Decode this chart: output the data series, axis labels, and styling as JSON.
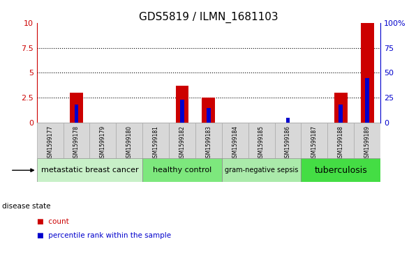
{
  "title": "GDS5819 / ILMN_1681103",
  "samples": [
    "GSM1599177",
    "GSM1599178",
    "GSM1599179",
    "GSM1599180",
    "GSM1599181",
    "GSM1599182",
    "GSM1599183",
    "GSM1599184",
    "GSM1599185",
    "GSM1599186",
    "GSM1599187",
    "GSM1599188",
    "GSM1599189"
  ],
  "count_values": [
    0,
    3.0,
    0,
    0,
    0,
    3.7,
    2.5,
    0,
    0,
    0,
    0,
    3.0,
    10.0
  ],
  "percentile_values": [
    0,
    1.8,
    0,
    0,
    0,
    2.3,
    1.5,
    0,
    0,
    0.5,
    0,
    1.8,
    4.5
  ],
  "groups": [
    {
      "label": "metastatic breast cancer",
      "start": 0,
      "end": 4,
      "color": "#c8f0c8",
      "fontsize": 8
    },
    {
      "label": "healthy control",
      "start": 4,
      "end": 7,
      "color": "#7de87d",
      "fontsize": 8
    },
    {
      "label": "gram-negative sepsis",
      "start": 7,
      "end": 10,
      "color": "#aaeaaa",
      "fontsize": 7
    },
    {
      "label": "tuberculosis",
      "start": 10,
      "end": 13,
      "color": "#44dd44",
      "fontsize": 9
    }
  ],
  "ylim_left": [
    0,
    10
  ],
  "ylim_right": [
    0,
    100
  ],
  "yticks_left": [
    0,
    2.5,
    5.0,
    7.5,
    10
  ],
  "ytick_labels_left": [
    "0",
    "2.5",
    "5",
    "7.5",
    "10"
  ],
  "yticks_right": [
    0,
    25,
    50,
    75,
    100
  ],
  "ytick_labels_right": [
    "0",
    "25",
    "50",
    "75",
    "100%"
  ],
  "left_color": "#cc0000",
  "right_color": "#0000cc",
  "bar_width": 0.5,
  "pct_bar_width": 0.15,
  "background_color": "#ffffff",
  "grid_color": "#000000",
  "sample_box_color": "#d8d8d8",
  "sample_box_edge": "#aaaaaa"
}
